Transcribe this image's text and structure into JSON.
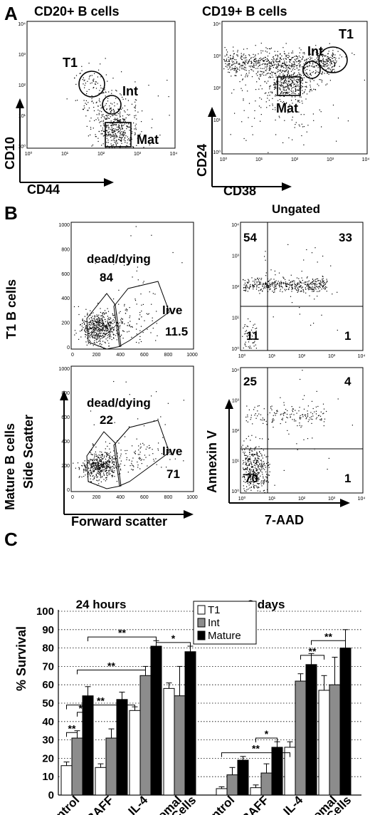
{
  "panel_a": {
    "letter": "A",
    "left": {
      "title": "CD20+ B cells",
      "xlabel": "CD44",
      "ylabel": "CD10",
      "xticks": [
        "10⁰",
        "10¹",
        "10²",
        "10³",
        "10⁴"
      ],
      "yticks": [
        "10⁰",
        "10¹",
        "10²",
        "10³",
        "10⁴"
      ],
      "gates": [
        "T1",
        "Int",
        "Mat"
      ]
    },
    "right": {
      "title": "CD19+ B cells",
      "xlabel": "CD38",
      "ylabel": "CD24",
      "xticks": [
        "10⁰",
        "10¹",
        "10²",
        "10³",
        "10⁴"
      ],
      "yticks": [
        "10⁰",
        "10¹",
        "10²",
        "10³",
        "10⁴"
      ],
      "gates": [
        "T1",
        "Int",
        "Mat"
      ]
    }
  },
  "panel_b": {
    "letter": "B",
    "row_labels": [
      "T1 B cells",
      "Mature B cells"
    ],
    "scatter_xlabel": "Forward scatter",
    "scatter_ylabel": "Side Scatter",
    "annexin_title": "Ungated",
    "annexin_xlabel": "7-AAD",
    "annexin_ylabel": "Annexin V",
    "fs_ticks": [
      "0",
      "200",
      "400",
      "600",
      "800",
      "1000"
    ],
    "log_ticks": [
      "10⁰",
      "10¹",
      "10²",
      "10³",
      "10⁴"
    ],
    "t1": {
      "dead_label": "dead/dying",
      "dead_value": "84",
      "live_label": "live",
      "live_value": "11.5",
      "quadrants": {
        "ul": "54",
        "ur": "33",
        "ll": "11",
        "lr": "1"
      }
    },
    "mature": {
      "dead_label": "dead/dying",
      "dead_value": "22",
      "live_label": "live",
      "live_value": "71",
      "quadrants": {
        "ul": "25",
        "ur": "4",
        "ll": "70",
        "lr": "1"
      }
    }
  },
  "panel_c": {
    "letter": "C"
  },
  "chart_data": {
    "type": "bar",
    "ylabel": "% Survival",
    "ylim": [
      0,
      100
    ],
    "yticks": [
      "0",
      "10",
      "20",
      "30",
      "40",
      "50",
      "60",
      "70",
      "80",
      "90",
      "100"
    ],
    "grid": "horizontal dotted",
    "legend_position": "top-center",
    "groups": [
      {
        "title": "24 hours",
        "categories": [
          "Control",
          "BAFF",
          "IL-4",
          "Stromal Cells"
        ]
      },
      {
        "title": "3 days",
        "categories": [
          "Control",
          "BAFF",
          "IL-4",
          "Stromal Cells"
        ]
      }
    ],
    "category_labels": [
      [
        "Control"
      ],
      [
        "BAFF"
      ],
      [
        "IL-4"
      ],
      [
        "Stromal",
        "Cells"
      ],
      [
        "Control"
      ],
      [
        "BAFF"
      ],
      [
        "IL-4"
      ],
      [
        "Stromal",
        "Cells"
      ]
    ],
    "series": [
      {
        "name": "T1",
        "color": "#ffffff",
        "values": [
          16,
          15,
          46,
          58,
          3.5,
          4,
          26,
          57
        ],
        "errors": [
          2,
          2,
          2,
          3,
          1,
          1.5,
          3,
          8
        ]
      },
      {
        "name": "Int",
        "color": "#8c8c8c",
        "values": [
          31,
          31,
          65,
          54,
          11,
          12,
          62,
          60
        ],
        "errors": [
          4,
          5,
          5,
          16,
          4,
          5,
          4,
          15
        ]
      },
      {
        "name": "Mature",
        "color": "#000000",
        "values": [
          54,
          52,
          81,
          78,
          19,
          26,
          71,
          80
        ],
        "errors": [
          5,
          4,
          3,
          3,
          2,
          3,
          6,
          10
        ]
      }
    ],
    "significance": [
      {
        "label": "**"
      },
      {
        "label": "**"
      },
      {
        "label": "**"
      },
      {
        "label": "**"
      },
      {
        "label": "**"
      },
      {
        "label": "*"
      },
      {
        "label": "**"
      },
      {
        "label": "*"
      },
      {
        "label": "**"
      },
      {
        "label": "**"
      }
    ]
  }
}
